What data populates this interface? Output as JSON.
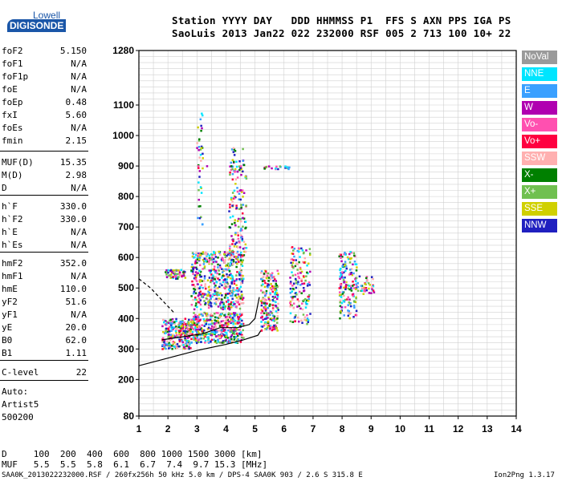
{
  "logo": {
    "line1": "Lowell",
    "line2": "DIGISONDE"
  },
  "header": {
    "row1": "Station YYYY DAY   DDD HHMMSS P1  FFS S AXN PPS IGA PS",
    "row2": "SaoLuis 2013 Jan22 022 232000 RSF 005 2 713 100 10+ 22"
  },
  "params": [
    {
      "name": "foF2",
      "value": "5.150"
    },
    {
      "name": "foF1",
      "value": "N/A"
    },
    {
      "name": "foF1p",
      "value": "N/A"
    },
    {
      "name": "foE",
      "value": "N/A"
    },
    {
      "name": "foEp",
      "value": "0.48"
    },
    {
      "name": "fxI",
      "value": "5.60"
    },
    {
      "name": "foEs",
      "value": "N/A"
    },
    {
      "name": "fmin",
      "value": "2.15"
    },
    {
      "name": "MUF(D)",
      "value": "15.35"
    },
    {
      "name": "M(D)",
      "value": "2.98"
    },
    {
      "name": "D",
      "value": "N/A"
    },
    {
      "name": "h`F",
      "value": "330.0"
    },
    {
      "name": "h`F2",
      "value": "330.0"
    },
    {
      "name": "h`E",
      "value": "N/A"
    },
    {
      "name": "h`Es",
      "value": "N/A"
    },
    {
      "name": "hmF2",
      "value": "352.0"
    },
    {
      "name": "hmF1",
      "value": "N/A"
    },
    {
      "name": "hmE",
      "value": "110.0"
    },
    {
      "name": "yF2",
      "value": "51.6"
    },
    {
      "name": "yF1",
      "value": "N/A"
    },
    {
      "name": "yE",
      "value": "20.0"
    },
    {
      "name": "B0",
      "value": "62.0"
    },
    {
      "name": "B1",
      "value": "1.11"
    },
    {
      "name": "C-level",
      "value": "22"
    }
  ],
  "auto": {
    "line1": "Auto:",
    "line2": "Artist5",
    "line3": "500200"
  },
  "legend": [
    {
      "label": "NoVal",
      "color": "#9a9a9a"
    },
    {
      "label": "NNE",
      "color": "#00e5ff"
    },
    {
      "label": "E",
      "color": "#3aa0ff"
    },
    {
      "label": "W",
      "color": "#b000b0"
    },
    {
      "label": "Vo-",
      "color": "#ff50b0"
    },
    {
      "label": "Vo+",
      "color": "#ff0040"
    },
    {
      "label": "SSW",
      "color": "#ffb0b0"
    },
    {
      "label": "X-",
      "color": "#008000"
    },
    {
      "label": "X+",
      "color": "#70c050"
    },
    {
      "label": "SSE",
      "color": "#d0d000"
    },
    {
      "label": "NNW",
      "color": "#2020c0"
    }
  ],
  "chart_data": {
    "type": "scatter",
    "title": "",
    "xlabel": "",
    "ylabel": "",
    "xlim": [
      1,
      14
    ],
    "ylim": [
      80,
      1280
    ],
    "x_ticks": [
      "1",
      "2",
      "3",
      "4",
      "5",
      "6",
      "7",
      "8",
      "9",
      "10",
      "11",
      "12",
      "13",
      "14"
    ],
    "y_ticks": [
      "80",
      "200",
      "300",
      "400",
      "500",
      "600",
      "700",
      "800",
      "900",
      "1000",
      "1100",
      "1280"
    ],
    "grid": true,
    "profile_curve": [
      [
        1,
        245
      ],
      [
        2,
        270
      ],
      [
        3,
        295
      ],
      [
        4,
        315
      ],
      [
        4.6,
        330
      ],
      [
        5.1,
        345
      ],
      [
        5.2,
        360
      ]
    ],
    "trace_curve": [
      [
        1.8,
        330
      ],
      [
        2.5,
        340
      ],
      [
        3.2,
        350
      ],
      [
        3.8,
        370
      ],
      [
        4.4,
        370
      ],
      [
        4.8,
        380
      ],
      [
        5.0,
        400
      ],
      [
        5.15,
        470
      ]
    ],
    "dashed_curve": [
      [
        1,
        530
      ],
      [
        1.4,
        500
      ],
      [
        1.8,
        460
      ],
      [
        2.2,
        420
      ]
    ]
  },
  "bottom": {
    "row1": "D     100  200  400  600  800 1000 1500 3000 [km]",
    "row2": "MUF   5.5  5.5  5.8  6.1  6.7  7.4  9.7 15.3 [MHz]"
  },
  "footer": {
    "left": "SAA0K_2013022232000.RSF / 260fx256h 50 kHz 5.0 km / DPS-4 SAA0K 903 / 2.6 S 315.8 E",
    "right": "Ion2Png 1.3.17"
  }
}
